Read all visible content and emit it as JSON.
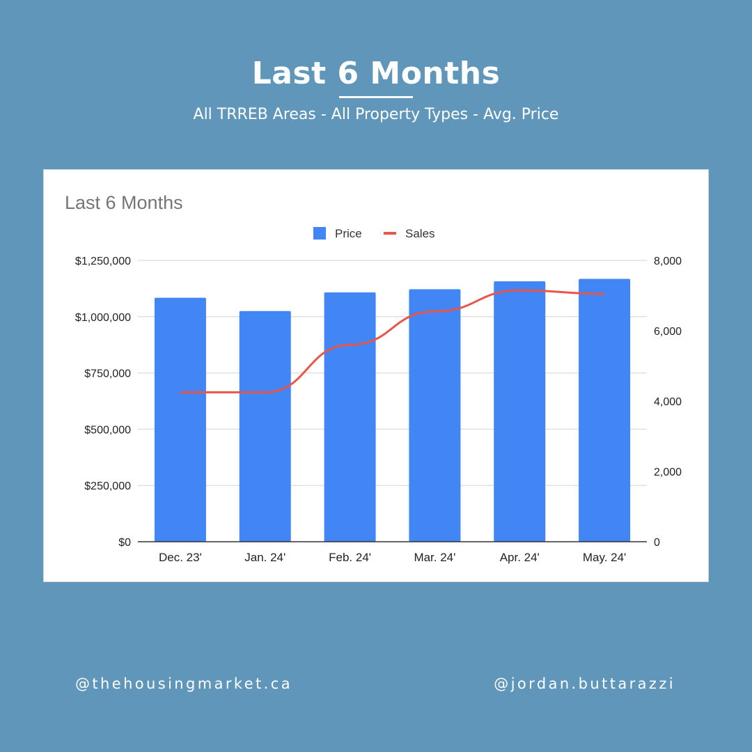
{
  "header": {
    "title": "Last 6 Months",
    "subtitle": "All TRREB Areas - All Property Types - Avg. Price"
  },
  "footer": {
    "left_handle": "@thehousingmarket.ca",
    "right_handle": "@jordan.buttarazzi"
  },
  "colors": {
    "background": "#6096ba",
    "bar": "#4285f4",
    "line": "#e8564a"
  },
  "chart_data": {
    "type": "bar",
    "title": "Last 6 Months",
    "categories": [
      "Dec. 23'",
      "Jan. 24'",
      "Feb. 24'",
      "Mar. 24'",
      "Apr. 24'",
      "May. 24'"
    ],
    "legend_placement": "top-center",
    "grid": true,
    "series": [
      {
        "name": "Price",
        "type": "bar",
        "axis": "left",
        "values": [
          1084000,
          1025000,
          1108000,
          1122000,
          1157000,
          1168000
        ]
      },
      {
        "name": "Sales",
        "type": "line",
        "axis": "right",
        "values": [
          4250,
          4250,
          5600,
          6550,
          7150,
          7050
        ]
      }
    ],
    "y_left": {
      "ylim": [
        0,
        1250000
      ],
      "ticks": [
        0,
        250000,
        500000,
        750000,
        1000000,
        1250000
      ],
      "tick_labels": [
        "$0",
        "$250,000",
        "$500,000",
        "$750,000",
        "$1,000,000",
        "$1,250,000"
      ]
    },
    "y_right": {
      "ylim": [
        0,
        8000
      ],
      "ticks": [
        0,
        2000,
        4000,
        6000,
        8000
      ],
      "tick_labels": [
        "0",
        "2,000",
        "4,000",
        "6,000",
        "8,000"
      ]
    }
  }
}
